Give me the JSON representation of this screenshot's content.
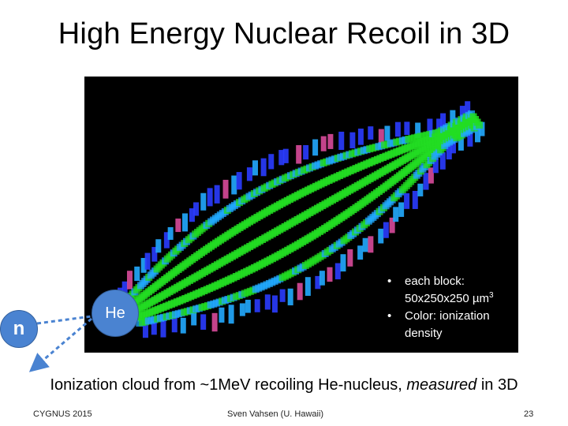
{
  "slide": {
    "title": "High Energy Nuclear Recoil in 3D",
    "bullets": [
      {
        "text_main": "each block: 50x250x250 µm",
        "sup": "3"
      },
      {
        "text_main": "Color: ionization density",
        "sup": ""
      }
    ],
    "he_label": "He",
    "n_label": "n",
    "caption_pre": "Ionization cloud from ~1MeV recoiling He-nucleus, ",
    "caption_em": "measured",
    "caption_post": " in 3D",
    "footer_left": "CYGNUS 2015",
    "footer_center": "Sven Vahsen (U. Hawaii)",
    "footer_right": "23"
  },
  "colors": {
    "accent": "#4a83d1",
    "viz_background": "#000000",
    "ionization_high": "#22dd22",
    "ionization_mid": "#22aaff",
    "ionization_low": "#2a3cff",
    "ionization_edge": "#d84a9a"
  }
}
